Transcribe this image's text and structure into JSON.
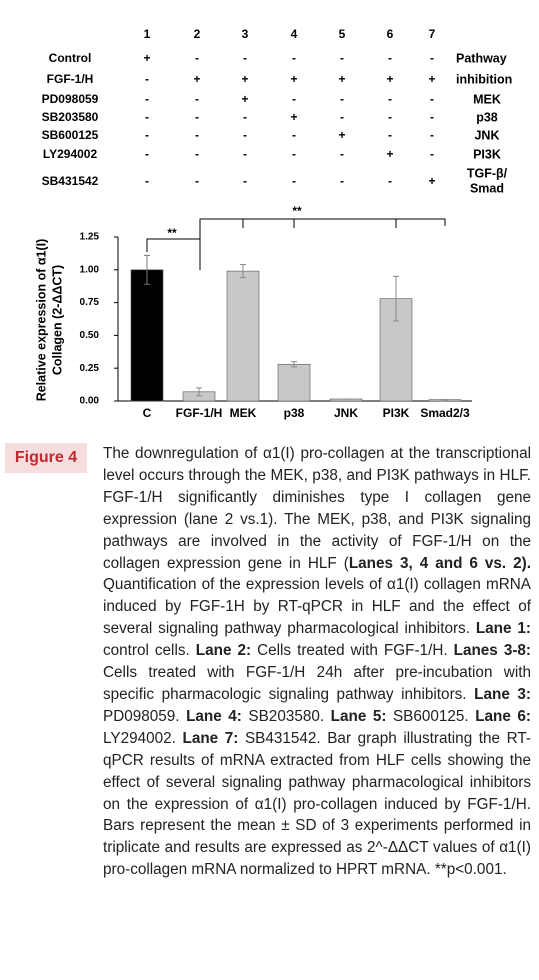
{
  "lanes": {
    "numbers": [
      "1",
      "2",
      "3",
      "4",
      "5",
      "6",
      "7"
    ],
    "rows": [
      {
        "label": "Control",
        "marks": [
          "+",
          "-",
          "-",
          "-",
          "-",
          "-",
          "-"
        ],
        "right": [
          "Pathway"
        ]
      },
      {
        "label": "FGF-1/H",
        "marks": [
          "-",
          "+",
          "+",
          "+",
          "+",
          "+",
          "+"
        ],
        "right": [
          "inhibition"
        ]
      },
      {
        "label": "PD098059",
        "marks": [
          "-",
          "-",
          "+",
          "-",
          "-",
          "-",
          "-"
        ],
        "right": [
          "MEK"
        ]
      },
      {
        "label": "SB203580",
        "marks": [
          "-",
          "-",
          "-",
          "+",
          "-",
          "-",
          "-"
        ],
        "right": [
          "p38"
        ]
      },
      {
        "label": "SB600125",
        "marks": [
          "-",
          "-",
          "-",
          "-",
          "+",
          "-",
          "-"
        ],
        "right": [
          "JNK"
        ]
      },
      {
        "label": "LY294002",
        "marks": [
          "-",
          "-",
          "-",
          "-",
          "-",
          "+",
          "-"
        ],
        "right": [
          "PI3K"
        ]
      },
      {
        "label": "SB431542",
        "marks": [
          "-",
          "-",
          "-",
          "-",
          "-",
          "-",
          "+"
        ],
        "right": [
          "TGF-β/",
          "Smad"
        ]
      }
    ]
  },
  "chart_data": {
    "type": "bar",
    "ylabel": [
      "Relative expression of α1(I)",
      "Collagen (2-ΔΔCT)"
    ],
    "categories": [
      "C",
      "FGF-1/H",
      "MEK",
      "p38",
      "JNK",
      "PI3K",
      "Smad2/3"
    ],
    "values": [
      1.0,
      0.07,
      0.99,
      0.28,
      0.015,
      0.78,
      0.01
    ],
    "errors": [
      0.11,
      0.03,
      0.05,
      0.02,
      0,
      0.17,
      0
    ],
    "colors": [
      "#000000",
      "#c8c8c8",
      "#c8c8c8",
      "#c8c8c8",
      "#c8c8c8",
      "#c8c8c8",
      "#c8c8c8"
    ],
    "ylim": [
      0,
      1.25
    ],
    "yticks": [
      {
        "value": 0,
        "label": "0.00"
      },
      {
        "value": 0.25,
        "label": "0.25"
      },
      {
        "value": 0.5,
        "label": "0.50"
      },
      {
        "value": 0.75,
        "label": "0.75"
      },
      {
        "value": 1,
        "label": "1.00"
      },
      {
        "value": 1.25,
        "label": "1.25"
      }
    ],
    "annotations": [
      "**",
      "**"
    ]
  },
  "figure_label": "Figure 4",
  "caption": [
    {
      "text": "The downregulation of α1(I) pro-collagen at the transcriptional level occurs through the MEK, p38, and PI3K pathways in HLF. FGF-1/H significantly diminishes type I collagen gene expression (lane 2 vs.1). The MEK, p38, and PI3K signaling pathways are involved in the activity of FGF-1/H on the collagen expression gene in HLF (",
      "bold": false
    },
    {
      "text": "Lanes 3, 4 and 6 vs. 2).",
      "bold": true
    },
    {
      "text": " Quantification of the expression levels of α1(I) collagen mRNA induced by FGF-1H by RT-qPCR in HLF and the effect of several signaling pathway pharmacological inhibitors. ",
      "bold": false
    },
    {
      "text": "Lane 1:",
      "bold": true
    },
    {
      "text": " control cells. ",
      "bold": false
    },
    {
      "text": "Lane 2:",
      "bold": true
    },
    {
      "text": " Cells treated with FGF-1/H. ",
      "bold": false
    },
    {
      "text": "Lanes 3-8:",
      "bold": true
    },
    {
      "text": " Cells treated with FGF-1/H 24h after pre-incubation with specific pharmacologic signaling pathway inhibitors. ",
      "bold": false
    },
    {
      "text": "Lane 3:",
      "bold": true
    },
    {
      "text": " PD098059. ",
      "bold": false
    },
    {
      "text": "Lane 4:",
      "bold": true
    },
    {
      "text": " SB203580. ",
      "bold": false
    },
    {
      "text": "Lane 5:",
      "bold": true
    },
    {
      "text": " SB600125. ",
      "bold": false
    },
    {
      "text": "Lane 6:",
      "bold": true
    },
    {
      "text": " LY294002. ",
      "bold": false
    },
    {
      "text": "Lane 7:",
      "bold": true
    },
    {
      "text": " SB431542. Bar graph illustrating the RT-qPCR results of mRNA extracted from HLF cells showing the effect of several signaling pathway pharmacological inhibitors on the expression of α1(I) pro-collagen induced by FGF-1/H. Bars represent the mean ± SD of 3 experiments performed in triplicate and results are expressed as 2^-ΔΔCT values of α1(I) pro-collagen mRNA normalized to HPRT mRNA. **p<0.001.",
      "bold": false
    }
  ]
}
